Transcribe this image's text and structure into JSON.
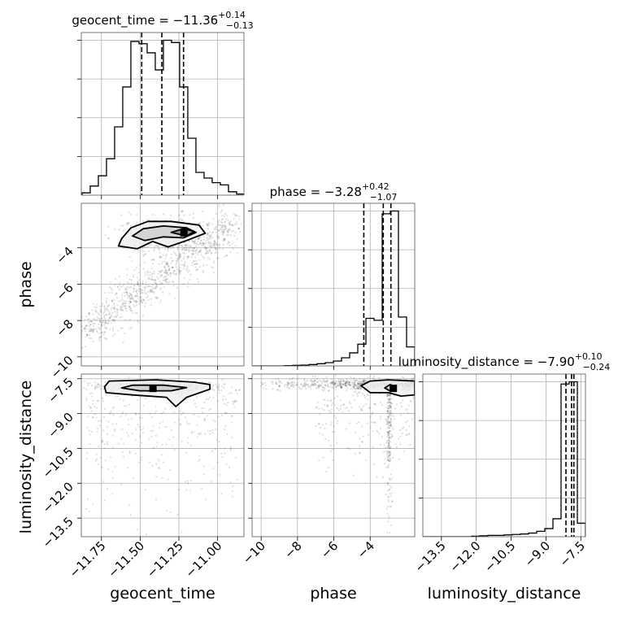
{
  "chart_data": {
    "type": "corner",
    "parameters": [
      "geocent_time",
      "phase",
      "luminosity_distance"
    ],
    "titles": [
      {
        "name": "geocent_time",
        "median": "−11.36",
        "plus": "+0.14",
        "minus": "−0.13"
      },
      {
        "name": "phase",
        "median": "−3.28",
        "plus": "+0.42",
        "minus": "−1.07"
      },
      {
        "name": "luminosity_distance",
        "median": "−7.90",
        "plus": "+0.10",
        "minus": "−0.24"
      }
    ],
    "axes": {
      "geocent_time": {
        "range": [
          -11.88,
          -10.83
        ],
        "ticks": [
          -11.75,
          -11.5,
          -11.25,
          -11.0
        ],
        "tick_labels": [
          "−11.75",
          "−11.50",
          "−11.25",
          "−11.00"
        ],
        "quantiles": [
          -11.49,
          -11.36,
          -11.22
        ]
      },
      "phase": {
        "range": [
          -10.5,
          -1.55
        ],
        "ticks": [
          -10,
          -8,
          -6,
          -4
        ],
        "tick_labels": [
          "−10",
          "−8",
          "−6",
          "−4"
        ],
        "quantiles": [
          -4.35,
          -3.28,
          -2.86
        ]
      },
      "luminosity_distance": {
        "range": [
          -14.3,
          -7.3
        ],
        "ticks": [
          -13.5,
          -12.0,
          -10.5,
          -9.0,
          -7.5
        ],
        "tick_labels": [
          "−13.5",
          "−12.0",
          "−10.5",
          "−9.0",
          "−7.5"
        ],
        "quantiles": [
          -8.14,
          -7.9,
          -7.8
        ]
      }
    },
    "histograms": {
      "geocent_time": {
        "edges": [
          -11.875,
          -11.8225,
          -11.77,
          -11.7175,
          -11.665,
          -11.6125,
          -11.56,
          -11.5075,
          -11.455,
          -11.4025,
          -11.35,
          -11.2975,
          -11.245,
          -11.1925,
          -11.14,
          -11.0875,
          -11.035,
          -10.9825,
          -10.93,
          -10.8775,
          -10.825
        ],
        "counts": [
          2,
          8,
          17,
          32,
          60,
          95,
          135,
          133,
          125,
          110,
          136,
          134,
          95,
          50,
          20,
          15,
          11,
          9,
          3,
          1
        ]
      },
      "phase": {
        "edges": [
          -10.5,
          -10.0525,
          -9.605,
          -9.1575,
          -8.71,
          -8.2625,
          -7.815,
          -7.3675,
          -6.92,
          -6.4725,
          -6.025,
          -5.5775,
          -5.13,
          -4.6825,
          -4.235,
          -3.7875,
          -3.34,
          -2.8925,
          -2.445,
          -1.9975,
          -1.55
        ],
        "counts": [
          0,
          0,
          0,
          0,
          1,
          2,
          3,
          5,
          8,
          12,
          18,
          30,
          48,
          80,
          175,
          168,
          560,
          570,
          180,
          70
        ]
      },
      "luminosity_distance": {
        "edges": [
          -14.3,
          -13.95,
          -13.6,
          -13.25,
          -12.9,
          -12.55,
          -12.2,
          -11.85,
          -11.5,
          -11.15,
          -10.8,
          -10.45,
          -10.1,
          -9.75,
          -9.4,
          -9.05,
          -8.7,
          -8.35,
          -8.0,
          -7.65,
          -7.3
        ],
        "counts": [
          0,
          0,
          0,
          0,
          0,
          0,
          1,
          2,
          3,
          3,
          4,
          5,
          6,
          8,
          12,
          18,
          40,
          340,
          345,
          30
        ]
      }
    },
    "contours": {
      "phase_vs_geocent_time": {
        "peak": [
          -11.22,
          -3.15
        ],
        "levels": [
          [
            [
              -11.62,
              -3.5
            ],
            [
              -11.56,
              -2.9
            ],
            [
              -11.45,
              -2.55
            ],
            [
              -11.3,
              -2.55
            ],
            [
              -11.12,
              -2.75
            ],
            [
              -11.08,
              -3.2
            ],
            [
              -11.2,
              -3.6
            ],
            [
              -11.32,
              -3.95
            ],
            [
              -11.42,
              -3.65
            ],
            [
              -11.52,
              -4.05
            ],
            [
              -11.64,
              -3.9
            ]
          ],
          [
            [
              -11.55,
              -3.35
            ],
            [
              -11.48,
              -2.95
            ],
            [
              -11.35,
              -2.8
            ],
            [
              -11.2,
              -2.9
            ],
            [
              -11.14,
              -3.15
            ],
            [
              -11.22,
              -3.45
            ],
            [
              -11.35,
              -3.4
            ],
            [
              -11.47,
              -3.6
            ]
          ],
          [
            [
              -11.3,
              -3.15
            ],
            [
              -11.22,
              -2.95
            ],
            [
              -11.15,
              -3.1
            ],
            [
              -11.2,
              -3.35
            ]
          ]
        ]
      },
      "luminosity_distance_vs_geocent_time": {
        "peak": [
          -11.42,
          -7.9
        ],
        "levels": [
          [
            [
              -11.73,
              -7.85
            ],
            [
              -11.7,
              -7.6
            ],
            [
              -11.4,
              -7.55
            ],
            [
              -11.15,
              -7.65
            ],
            [
              -11.05,
              -7.75
            ],
            [
              -11.05,
              -7.95
            ],
            [
              -11.2,
              -8.3
            ],
            [
              -11.27,
              -8.7
            ],
            [
              -11.33,
              -8.3
            ],
            [
              -11.55,
              -8.2
            ],
            [
              -11.72,
              -8.1
            ]
          ],
          [
            [
              -11.62,
              -7.9
            ],
            [
              -11.55,
              -7.78
            ],
            [
              -11.35,
              -7.78
            ],
            [
              -11.2,
              -7.88
            ],
            [
              -11.3,
              -8.02
            ],
            [
              -11.5,
              -8.02
            ]
          ]
        ]
      },
      "luminosity_distance_vs_phase": {
        "peak": [
          -2.75,
          -7.9
        ],
        "levels": [
          [
            [
              -4.5,
              -7.8
            ],
            [
              -4.0,
              -7.6
            ],
            [
              -3.0,
              -7.55
            ],
            [
              -1.55,
              -7.6
            ],
            [
              -1.55,
              -8.2
            ],
            [
              -2.3,
              -8.25
            ],
            [
              -3.0,
              -8.1
            ],
            [
              -4.0,
              -8.1
            ]
          ],
          [
            [
              -3.2,
              -7.9
            ],
            [
              -2.9,
              -7.75
            ],
            [
              -2.6,
              -7.85
            ],
            [
              -2.85,
              -8.05
            ]
          ]
        ]
      }
    }
  }
}
